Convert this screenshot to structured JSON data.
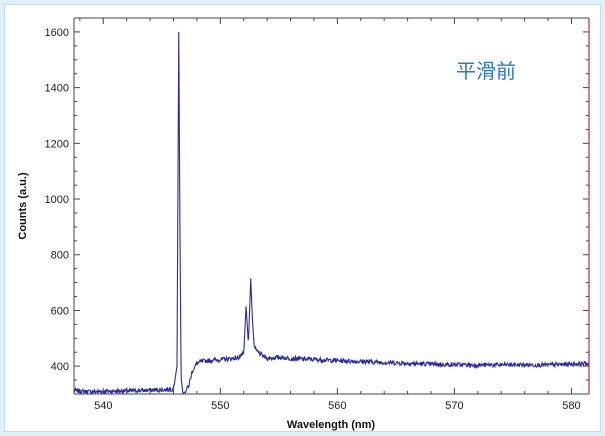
{
  "chart_data": {
    "type": "line",
    "xlabel": "Wavelength (nm)",
    "ylabel": "Counts (a.u.)",
    "annotation": "平滑前",
    "xlim": [
      537.5,
      581.5
    ],
    "ylim": [
      300,
      1650
    ],
    "xticks": [
      540,
      550,
      560,
      570,
      580
    ],
    "yticks": [
      400,
      600,
      800,
      1000,
      1200,
      1400,
      1600
    ],
    "grid": false,
    "series": [
      {
        "color": "#2b2b9b",
        "x": [
          537.5,
          539,
          540.5,
          542,
          543.5,
          545,
          546,
          546.3,
          546.45,
          546.55,
          546.65,
          546.8,
          547.0,
          547.3,
          547.6,
          548.0,
          548.5,
          549.5,
          550.5,
          551.5,
          552.0,
          552.2,
          552.4,
          552.6,
          552.75,
          552.9,
          553.1,
          553.5,
          554.0,
          555.0,
          556.0,
          558.0,
          560.0,
          563.0,
          566.0,
          569.0,
          572.0,
          575.0,
          578.0,
          581.5
        ],
        "y": [
          312,
          308,
          310,
          311,
          313,
          315,
          318,
          400,
          1600,
          900,
          360,
          302,
          308,
          330,
          382,
          410,
          418,
          422,
          425,
          430,
          445,
          615,
          480,
          715,
          560,
          470,
          455,
          440,
          428,
          432,
          428,
          424,
          420,
          415,
          410,
          406,
          404,
          405,
          404,
          410
        ]
      }
    ]
  }
}
